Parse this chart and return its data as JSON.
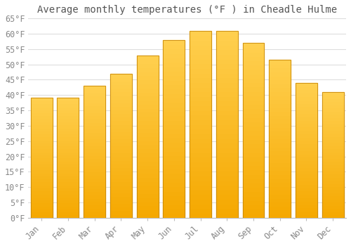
{
  "title": "Average monthly temperatures (°F ) in Cheadle Hulme",
  "months": [
    "Jan",
    "Feb",
    "Mar",
    "Apr",
    "May",
    "Jun",
    "Jul",
    "Aug",
    "Sep",
    "Oct",
    "Nov",
    "Dec"
  ],
  "values": [
    39.2,
    39.2,
    43.0,
    47.0,
    53.0,
    58.0,
    61.0,
    61.0,
    57.0,
    51.5,
    44.0,
    41.0
  ],
  "bar_color_top": "#FFD050",
  "bar_color_bottom": "#F5A800",
  "bar_edge_color": "#C8880A",
  "ylim": [
    0,
    65
  ],
  "ytick_step": 5,
  "background_color": "#FFFFFF",
  "grid_color": "#DDDDDD",
  "title_fontsize": 10,
  "tick_fontsize": 8.5,
  "font_family": "monospace",
  "tick_color": "#888888",
  "title_color": "#555555"
}
